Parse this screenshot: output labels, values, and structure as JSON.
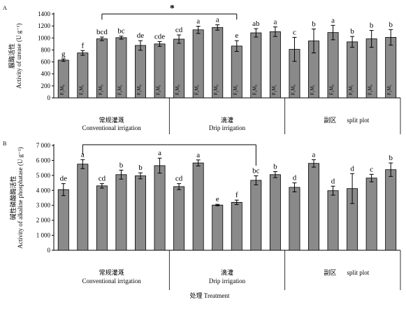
{
  "chart_data": [
    {
      "type": "bar",
      "panel": "A",
      "ylabel_cn": "脲酶活性",
      "ylabel_en": "Activity of urease (U g⁻¹)",
      "ylim": [
        0,
        1400
      ],
      "yticks": [
        0,
        200,
        400,
        600,
        800,
        1000,
        1200,
        1400
      ],
      "categories": [
        "F₁M₀",
        "F₁M₁",
        "F₂M₀",
        "F₂M₁",
        "F₃M₀",
        "F₃M₁",
        "F₁M₀",
        "F₁M₁",
        "F₂M₀",
        "F₂M₁",
        "F₃M₀",
        "F₃M₁",
        "F₁M₀",
        "F₁M₁",
        "F₂M₀",
        "F₂M₁",
        "F₃M₀",
        "F₃M₁"
      ],
      "values": [
        630,
        750,
        985,
        1005,
        875,
        900,
        980,
        1135,
        1175,
        865,
        1085,
        1105,
        810,
        950,
        1090,
        935,
        985,
        1010
      ],
      "errors": [
        20,
        40,
        30,
        25,
        80,
        40,
        70,
        60,
        45,
        90,
        70,
        80,
        200,
        200,
        120,
        90,
        140,
        130
      ],
      "letters": [
        "g",
        "f",
        "bcd",
        "bc",
        "de",
        "cde",
        "cd",
        "a",
        "a",
        "e",
        "ab",
        "a",
        "c",
        "b",
        "a",
        "b",
        "b",
        "b"
      ],
      "groups": [
        {
          "cn": "常规灌溉",
          "en": "Conventional irrigation"
        },
        {
          "cn": "滴灌",
          "en": "Drip irrigation"
        },
        {
          "cn": "副区",
          "en": "split plot"
        }
      ],
      "significance": "*"
    },
    {
      "type": "bar",
      "panel": "B",
      "ylabel_cn": "碱性磷酸酶活性",
      "ylabel_en": "Activity of alkaline phosphatase (U g⁻¹)",
      "ylim": [
        0,
        7000
      ],
      "yticks": [
        0,
        1000,
        2000,
        3000,
        4000,
        5000,
        6000,
        7000
      ],
      "ytick_labels": [
        "0",
        "1 000",
        "2 000",
        "3 000",
        "4 000",
        "5 000",
        "6 000",
        "7 000"
      ],
      "values": [
        4050,
        5750,
        4300,
        5050,
        4970,
        5650,
        4250,
        5830,
        3020,
        3200,
        4670,
        5050,
        4200,
        5800,
        3980,
        4120,
        4820,
        5380
      ],
      "errors": [
        400,
        300,
        150,
        300,
        200,
        500,
        200,
        200,
        50,
        150,
        300,
        200,
        300,
        250,
        300,
        1000,
        250,
        450
      ],
      "letters": [
        "de",
        "a",
        "cd",
        "b",
        "b",
        "a",
        "cd",
        "a",
        "e",
        "f",
        "bc",
        "b",
        "d",
        "a",
        "d",
        "d",
        "c",
        "b"
      ],
      "groups": [
        {
          "cn": "常规灌溉",
          "en": "Conventional irrigation"
        },
        {
          "cn": "滴灌",
          "en": "Drip irrigation"
        },
        {
          "cn": "副区",
          "en": "split plot"
        }
      ],
      "xlabel_cn": "处理",
      "xlabel_en": "Treatment"
    }
  ]
}
